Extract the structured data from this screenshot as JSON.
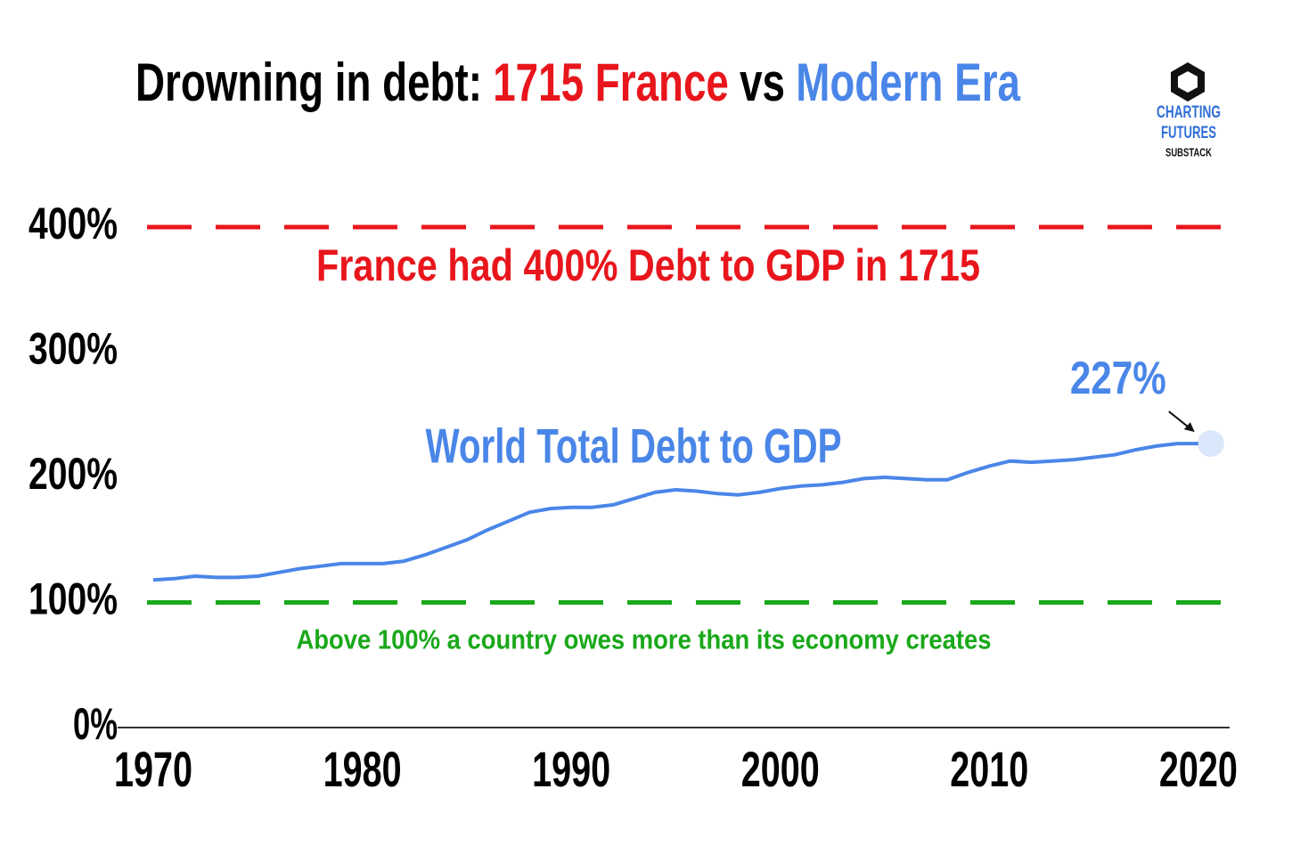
{
  "chart_data": {
    "type": "line",
    "title": [
      {
        "text": "Drowning in debt:",
        "color": "#000000"
      },
      {
        "text": "1715 France",
        "color": "#e8161c"
      },
      {
        "text": "vs",
        "color": "#000000"
      },
      {
        "text": "Modern Era",
        "color": "#4a86e8"
      }
    ],
    "logo": [
      "CHARTING",
      "FUTURES",
      "SUBSTACK"
    ],
    "x": [
      1970,
      1971,
      1972,
      1973,
      1974,
      1975,
      1976,
      1977,
      1978,
      1979,
      1980,
      1981,
      1982,
      1983,
      1984,
      1985,
      1986,
      1987,
      1988,
      1989,
      1990,
      1991,
      1992,
      1993,
      1994,
      1995,
      1996,
      1997,
      1998,
      1999,
      2000,
      2001,
      2002,
      2003,
      2004,
      2005,
      2006,
      2007,
      2008,
      2009,
      2010,
      2011,
      2012,
      2013,
      2014,
      2015,
      2016,
      2017,
      2018,
      2019,
      2020
    ],
    "series": [
      {
        "name": "World Total Debt to GDP",
        "color": "#4a86e8",
        "values": [
          118,
          119,
          121,
          120,
          120,
          121,
          124,
          127,
          129,
          131,
          131,
          131,
          133,
          138,
          144,
          150,
          158,
          165,
          172,
          175,
          176,
          176,
          178,
          183,
          188,
          190,
          189,
          187,
          186,
          188,
          191,
          193,
          194,
          196,
          199,
          200,
          199,
          198,
          198,
          204,
          209,
          213,
          212,
          213,
          214,
          216,
          218,
          222,
          225,
          227,
          227
        ]
      }
    ],
    "annotations": [
      {
        "text": "227%",
        "x": 2020,
        "y": 227
      }
    ],
    "reference_lines": [
      {
        "value": 400,
        "color": "#e8161c",
        "label": "France had 400% Debt to GDP in 1715"
      },
      {
        "value": 100,
        "color": "#1aa81a",
        "label": "Above 100% a country owes more than its economy creates"
      }
    ],
    "xlim": [
      1969.7,
      2021.5
    ],
    "xticks": [
      1970,
      1980,
      1990,
      2000,
      2010,
      2020
    ],
    "ylim": [
      0,
      400
    ],
    "yticks": [
      {
        "value": 0,
        "label": "0%"
      },
      {
        "value": 100,
        "label": "100%"
      },
      {
        "value": 200,
        "label": "200%"
      },
      {
        "value": 300,
        "label": "300%"
      },
      {
        "value": 400,
        "label": "400%"
      }
    ],
    "grid": false
  }
}
